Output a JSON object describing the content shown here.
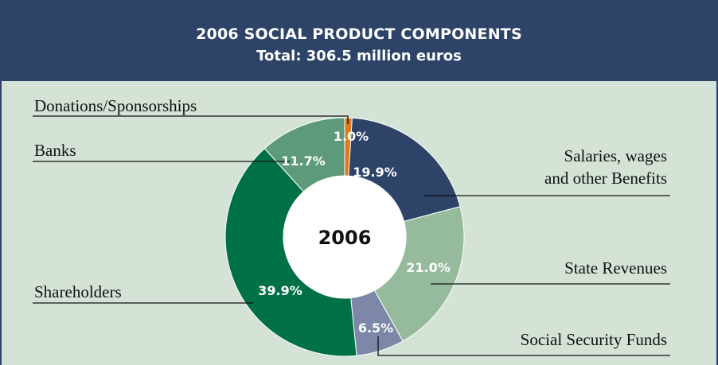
{
  "header": {
    "title": "2006 SOCIAL PRODUCT COMPONENTS",
    "subtitle": "Total: 306.5 million euros"
  },
  "chart_data": {
    "type": "pie",
    "title": "2006 SOCIAL PRODUCT COMPONENTS",
    "subtitle": "Total: 306.5 million euros",
    "center_label": "2006",
    "slices": [
      {
        "name": "Donations/Sponsorships",
        "value": 1.0,
        "label": "1.0%",
        "color": "#e0791e"
      },
      {
        "name": "Salaries, wages and other Benefits",
        "lines": [
          "Salaries, wages",
          "and other Benefits"
        ],
        "value": 19.9,
        "label": "19.9%",
        "color": "#2d4367"
      },
      {
        "name": "State Revenues",
        "value": 21.0,
        "label": "21.0%",
        "color": "#96bb9c"
      },
      {
        "name": "Social Security Funds",
        "value": 6.5,
        "label": "6.5%",
        "color": "#7d87a8"
      },
      {
        "name": "Shareholders",
        "value": 39.9,
        "label": "39.9%",
        "color": "#007047"
      },
      {
        "name": "Banks",
        "value": 11.7,
        "label": "11.7%",
        "color": "#5c9a7b"
      }
    ]
  }
}
